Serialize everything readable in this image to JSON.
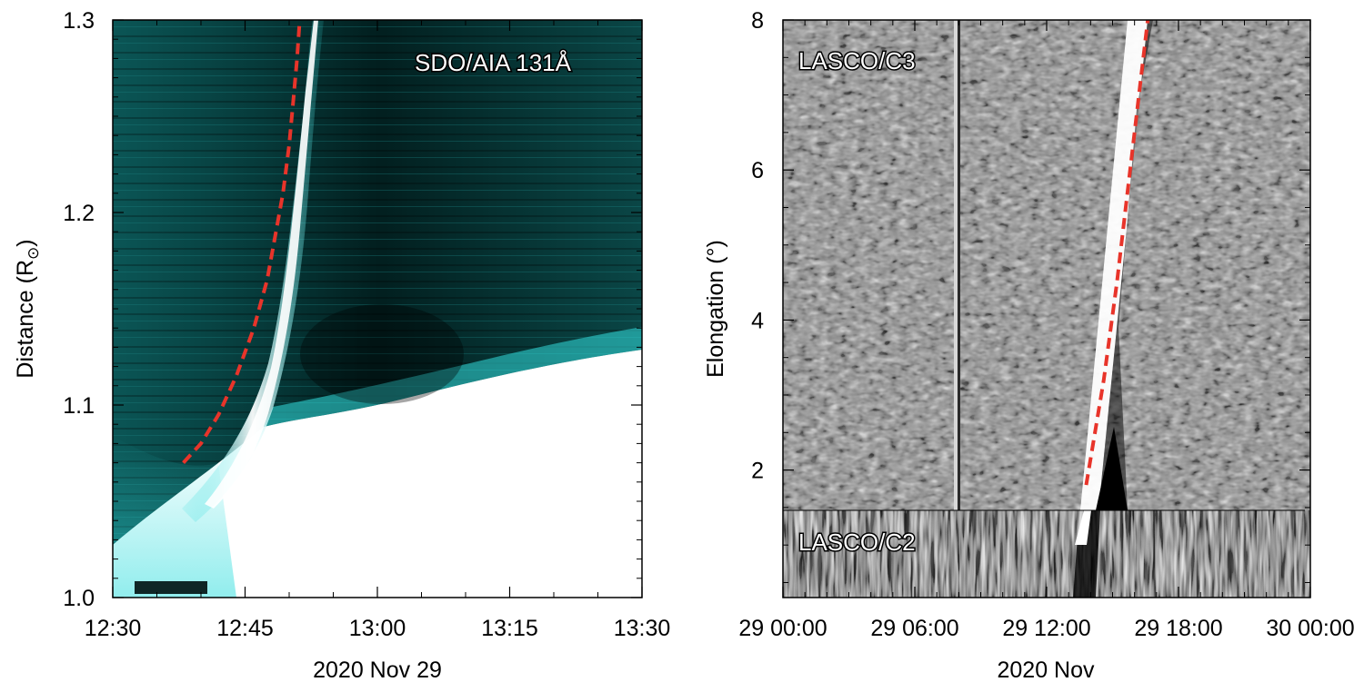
{
  "chart_data": [
    {
      "type": "heatmap",
      "instrument_label": "SDO/AIA 131Å",
      "xlabel": "2020 Nov 29",
      "ylabel": "Distance (R",
      "ylabel_sub": "⊙",
      "ylabel_close": ")",
      "x_tick_labels": [
        "12:30",
        "12:45",
        "13:00",
        "13:15",
        "13:30"
      ],
      "y_tick_labels": [
        "1.0",
        "1.1",
        "1.2",
        "1.3"
      ],
      "xlim_minutes": [
        0,
        60
      ],
      "ylim": [
        1.0,
        1.3
      ],
      "colormap": [
        "#002626",
        "#0a6e6e",
        "#33dede",
        "#ffffff"
      ],
      "fit_color": "#e8342a",
      "fit_track": [
        {
          "t_min": 8.0,
          "r": 1.07
        },
        {
          "t_min": 10.0,
          "r": 1.08
        },
        {
          "t_min": 12.0,
          "r": 1.095
        },
        {
          "t_min": 14.0,
          "r": 1.115
        },
        {
          "t_min": 16.0,
          "r": 1.14
        },
        {
          "t_min": 17.5,
          "r": 1.165
        },
        {
          "t_min": 18.5,
          "r": 1.19
        },
        {
          "t_min": 19.3,
          "r": 1.21
        },
        {
          "t_min": 20.0,
          "r": 1.235
        },
        {
          "t_min": 20.5,
          "r": 1.26
        },
        {
          "t_min": 20.9,
          "r": 1.28
        },
        {
          "t_min": 21.2,
          "r": 1.3
        }
      ]
    },
    {
      "type": "heatmap",
      "instrument_labels": [
        "LASCO/C3",
        "LASCO/C2"
      ],
      "xlabel": "2020 Nov",
      "ylabel": "Elongation (°)",
      "x_tick_labels": [
        "29 00:00",
        "29 06:00",
        "29 12:00",
        "29 18:00",
        "30 00:00"
      ],
      "y_tick_labels": [
        "2",
        "4",
        "6",
        "8"
      ],
      "xlim_hours": [
        0,
        24
      ],
      "ylim": [
        0.3,
        8.0
      ],
      "c2_c3_boundary_deg": 1.7,
      "colormap": [
        "#000000",
        "#8c8c8c",
        "#ffffff"
      ],
      "fit_color": "#e8342a",
      "fit_track": [
        {
          "t_hr": 13.8,
          "elong": 1.8
        },
        {
          "t_hr": 14.6,
          "elong": 3.2
        },
        {
          "t_hr": 15.2,
          "elong": 4.5
        },
        {
          "t_hr": 15.8,
          "elong": 6.0
        },
        {
          "t_hr": 16.6,
          "elong": 8.0
        }
      ]
    }
  ]
}
